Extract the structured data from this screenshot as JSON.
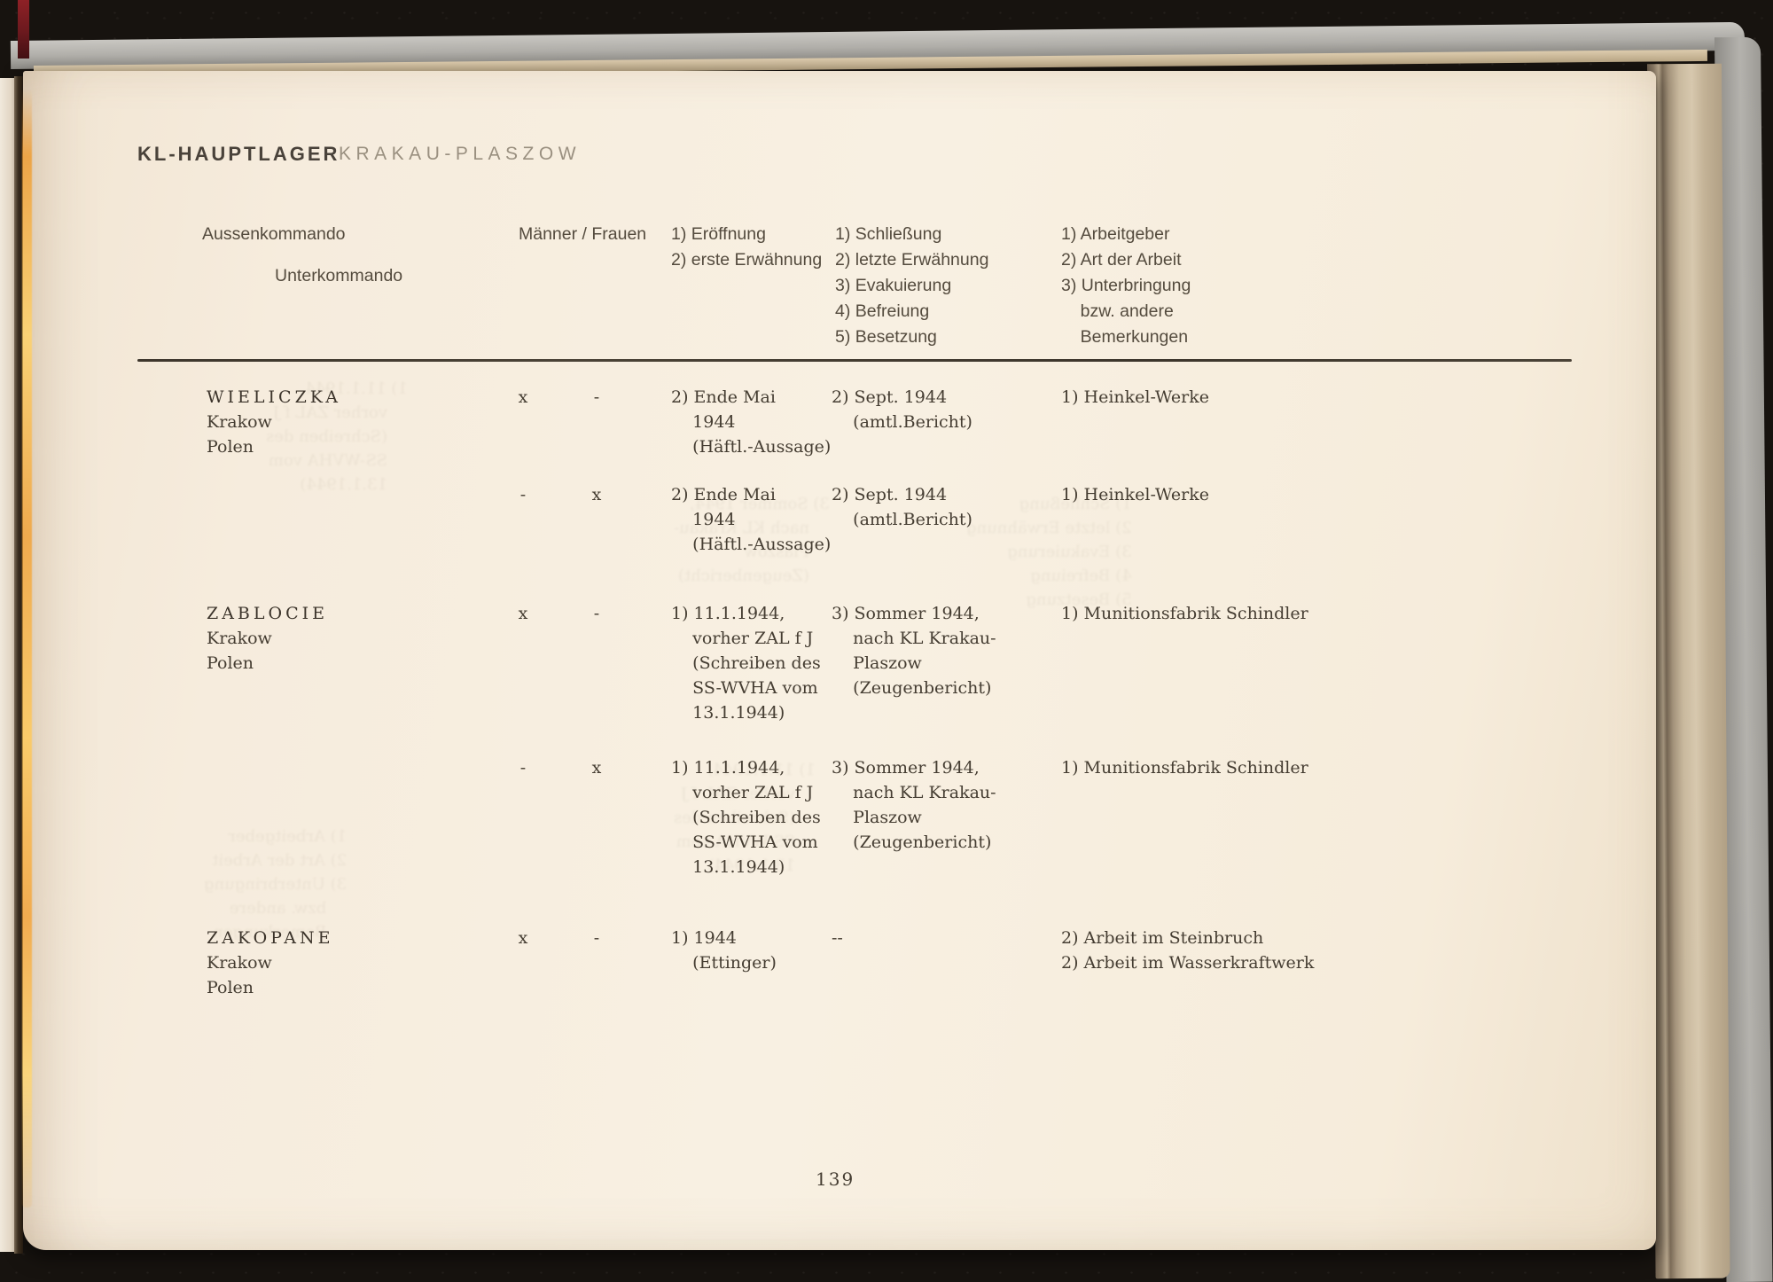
{
  "document": {
    "title_main": "KL-HAUPTLAGER",
    "title_sub": "KRAKAU-PLASZOW",
    "page_number": "139"
  },
  "table": {
    "headers": {
      "col_aussenkommando": "Aussenkommando",
      "col_unterkommando": "Unterkommando",
      "col_maenner_frauen": "Männer / Frauen",
      "col_opening": [
        "1) Eröffnung",
        "2) erste Erwähnung"
      ],
      "col_closing": [
        "1) Schließung",
        "2) letzte Erwähnung",
        "3) Evakuierung",
        "4) Befreiung",
        "5) Besetzung"
      ],
      "col_employer": [
        "1) Arbeitgeber",
        "2) Art der Arbeit",
        "3) Unterbringung",
        "    bzw. andere",
        "    Bemerkungen"
      ]
    },
    "rows": [
      {
        "name": "WIELICZKA",
        "place": [
          "Krakow",
          "Polen"
        ],
        "maenner": "x",
        "frauen": "-",
        "opening": [
          "2) Ende Mai",
          "    1944",
          "    (Häftl.-Aussage)"
        ],
        "closing": [
          "2) Sept. 1944",
          "    (amtl.Bericht)"
        ],
        "employer": [
          "1) Heinkel-Werke"
        ]
      },
      {
        "name": "",
        "place": [],
        "maenner": "-",
        "frauen": "x",
        "opening": [
          "2) Ende Mai",
          "    1944",
          "    (Häftl.-Aussage)"
        ],
        "closing": [
          "2) Sept. 1944",
          "    (amtl.Bericht)"
        ],
        "employer": [
          "1) Heinkel-Werke"
        ]
      },
      {
        "name": "ZABLOCIE",
        "place": [
          "Krakow",
          "Polen"
        ],
        "maenner": "x",
        "frauen": "-",
        "opening": [
          "1) 11.1.1944,",
          "    vorher ZAL f J",
          "    (Schreiben des",
          "    SS-WVHA vom",
          "    13.1.1944)"
        ],
        "closing": [
          "3) Sommer 1944,",
          "    nach KL Krakau-",
          "    Plaszow",
          "    (Zeugenbericht)"
        ],
        "employer": [
          "1) Munitionsfabrik Schindler"
        ]
      },
      {
        "name": "",
        "place": [],
        "maenner": "-",
        "frauen": "x",
        "opening": [
          "1) 11.1.1944,",
          "    vorher ZAL f J",
          "    (Schreiben des",
          "    SS-WVHA vom",
          "    13.1.1944)"
        ],
        "closing": [
          "3) Sommer 1944,",
          "    nach KL Krakau-",
          "    Plaszow",
          "    (Zeugenbericht)"
        ],
        "employer": [
          "1) Munitionsfabrik Schindler"
        ]
      },
      {
        "name": "ZAKOPANE",
        "place": [
          "Krakow",
          "Polen"
        ],
        "maenner": "x",
        "frauen": "-",
        "opening": [
          "1) 1944",
          "    (Ettinger)"
        ],
        "closing": [
          "--"
        ],
        "employer": [
          "2) Arbeit im Steinbruch",
          "2) Arbeit im Wasserkraftwerk"
        ]
      }
    ]
  }
}
